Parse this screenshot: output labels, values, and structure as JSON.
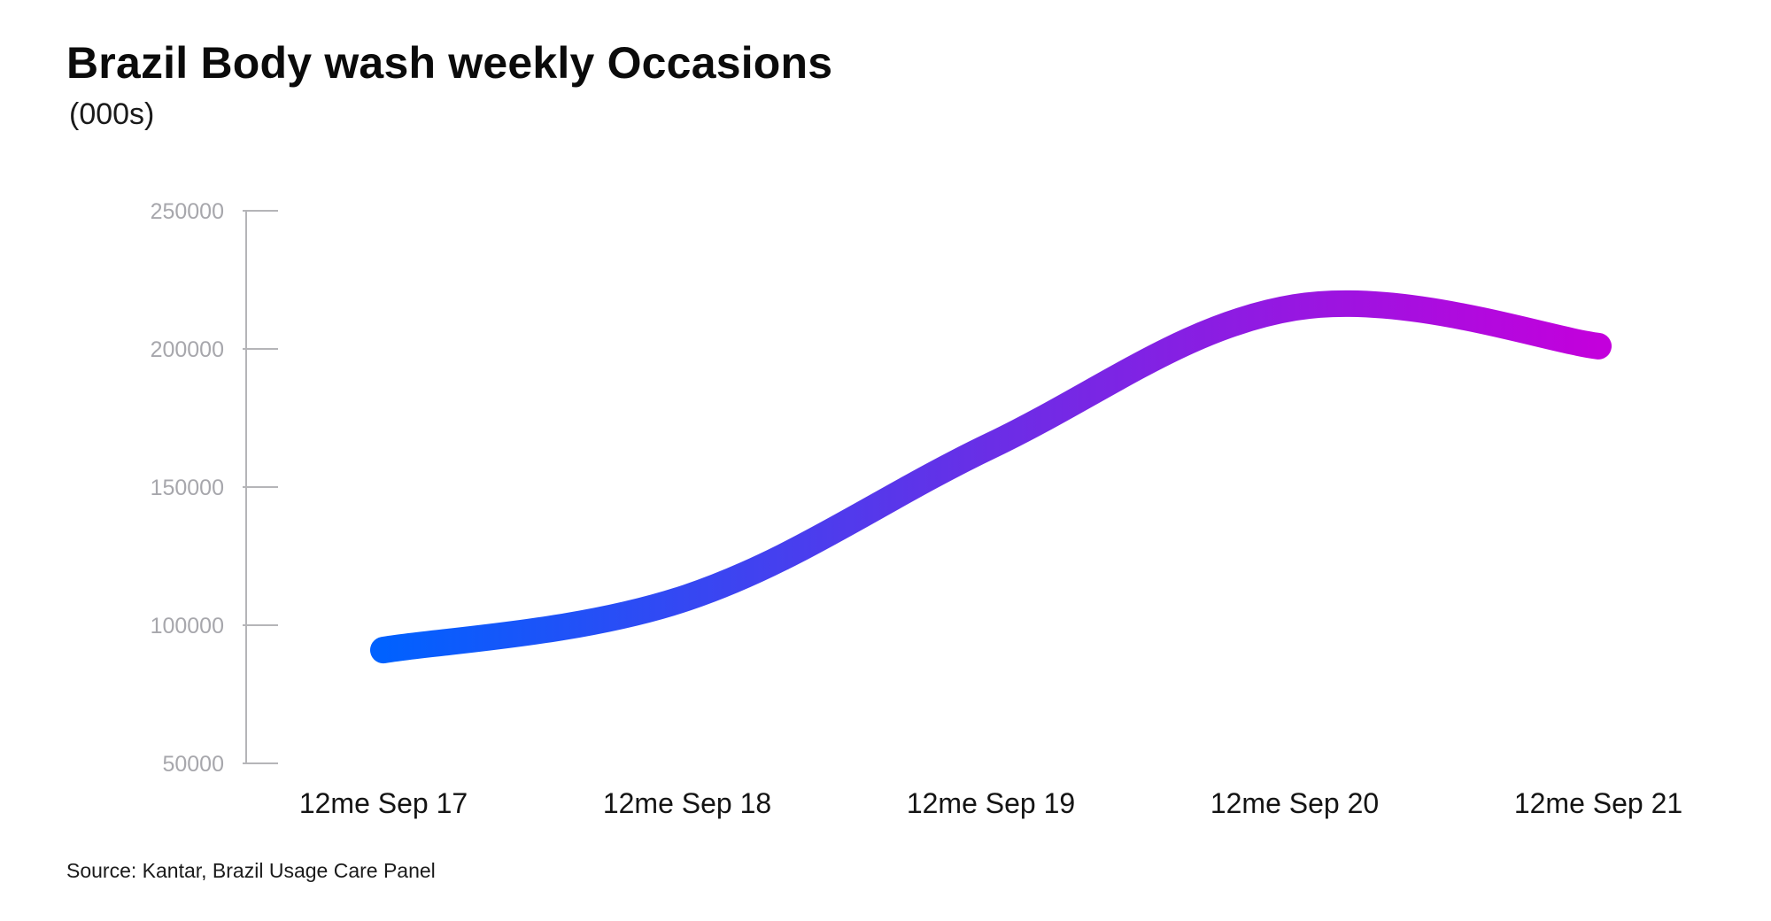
{
  "chart_data": {
    "type": "line",
    "title": "Brazil Body wash weekly Occasions",
    "subtitle": "(000s)",
    "source": "Source: Kantar, Brazil Usage Care Panel",
    "xlabel": "",
    "ylabel": "",
    "categories": [
      "12me Sep 17",
      "12me Sep 18",
      "12me Sep 19",
      "12me Sep 20",
      "12me Sep 21"
    ],
    "series": [
      {
        "values": [
          91000,
          110000,
          165000,
          215000,
          201000
        ]
      }
    ],
    "ylim": [
      50000,
      250000
    ],
    "y_ticks": [
      "50000",
      "100000",
      "150000",
      "200000",
      "250000"
    ],
    "grid": false,
    "legend": "none",
    "line_gradient": [
      "#0061ff",
      "#6a2ee6",
      "#c300dc"
    ],
    "axis_color": "#b5b5b8",
    "tick_label_color": "#a7a7ac"
  }
}
